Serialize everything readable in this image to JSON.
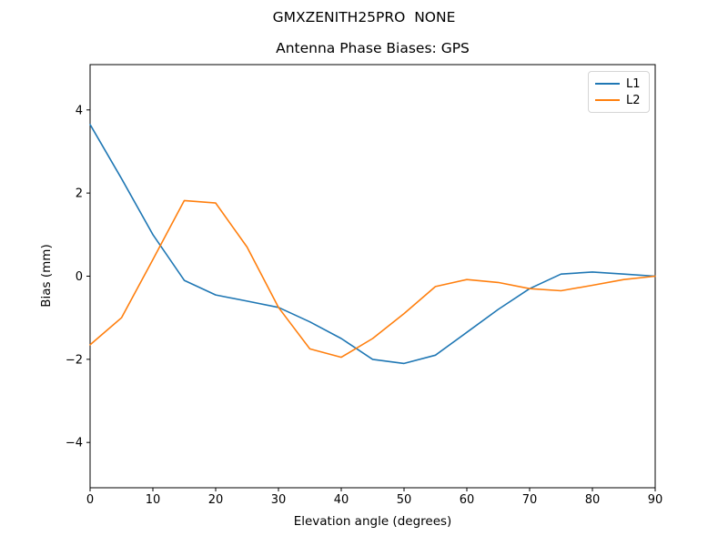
{
  "chart_data": {
    "type": "line",
    "suptitle": "GMXZENITH25PRO  NONE",
    "title": "Antenna Phase Biases: GPS",
    "xlabel": "Elevation angle (degrees)",
    "ylabel": "Bias (mm)",
    "xlim": [
      0,
      90
    ],
    "ylim": [
      -5.09,
      5.09
    ],
    "xticks": [
      0,
      10,
      20,
      30,
      40,
      50,
      60,
      70,
      80,
      90
    ],
    "yticks": [
      -4,
      -2,
      0,
      2,
      4
    ],
    "grid": false,
    "legend_position": "upper right",
    "x": [
      0,
      5,
      10,
      15,
      20,
      25,
      30,
      35,
      40,
      45,
      50,
      55,
      60,
      65,
      70,
      75,
      80,
      85,
      90
    ],
    "series": [
      {
        "name": "L1",
        "color": "#1f77b4",
        "values": [
          3.65,
          2.35,
          1.0,
          -0.1,
          -0.45,
          -0.6,
          -0.75,
          -1.1,
          -1.5,
          -2.0,
          -2.1,
          -1.9,
          -1.35,
          -0.8,
          -0.3,
          0.05,
          0.1,
          0.05,
          0.0
        ]
      },
      {
        "name": "L2",
        "color": "#ff7f0e",
        "values": [
          -1.65,
          -1.0,
          0.4,
          1.82,
          1.76,
          0.7,
          -0.75,
          -1.75,
          -1.95,
          -1.5,
          -0.9,
          -0.25,
          -0.08,
          -0.15,
          -0.3,
          -0.35,
          -0.22,
          -0.08,
          0.0
        ]
      }
    ],
    "axis_color": "#000000",
    "background_color": "#ffffff"
  }
}
